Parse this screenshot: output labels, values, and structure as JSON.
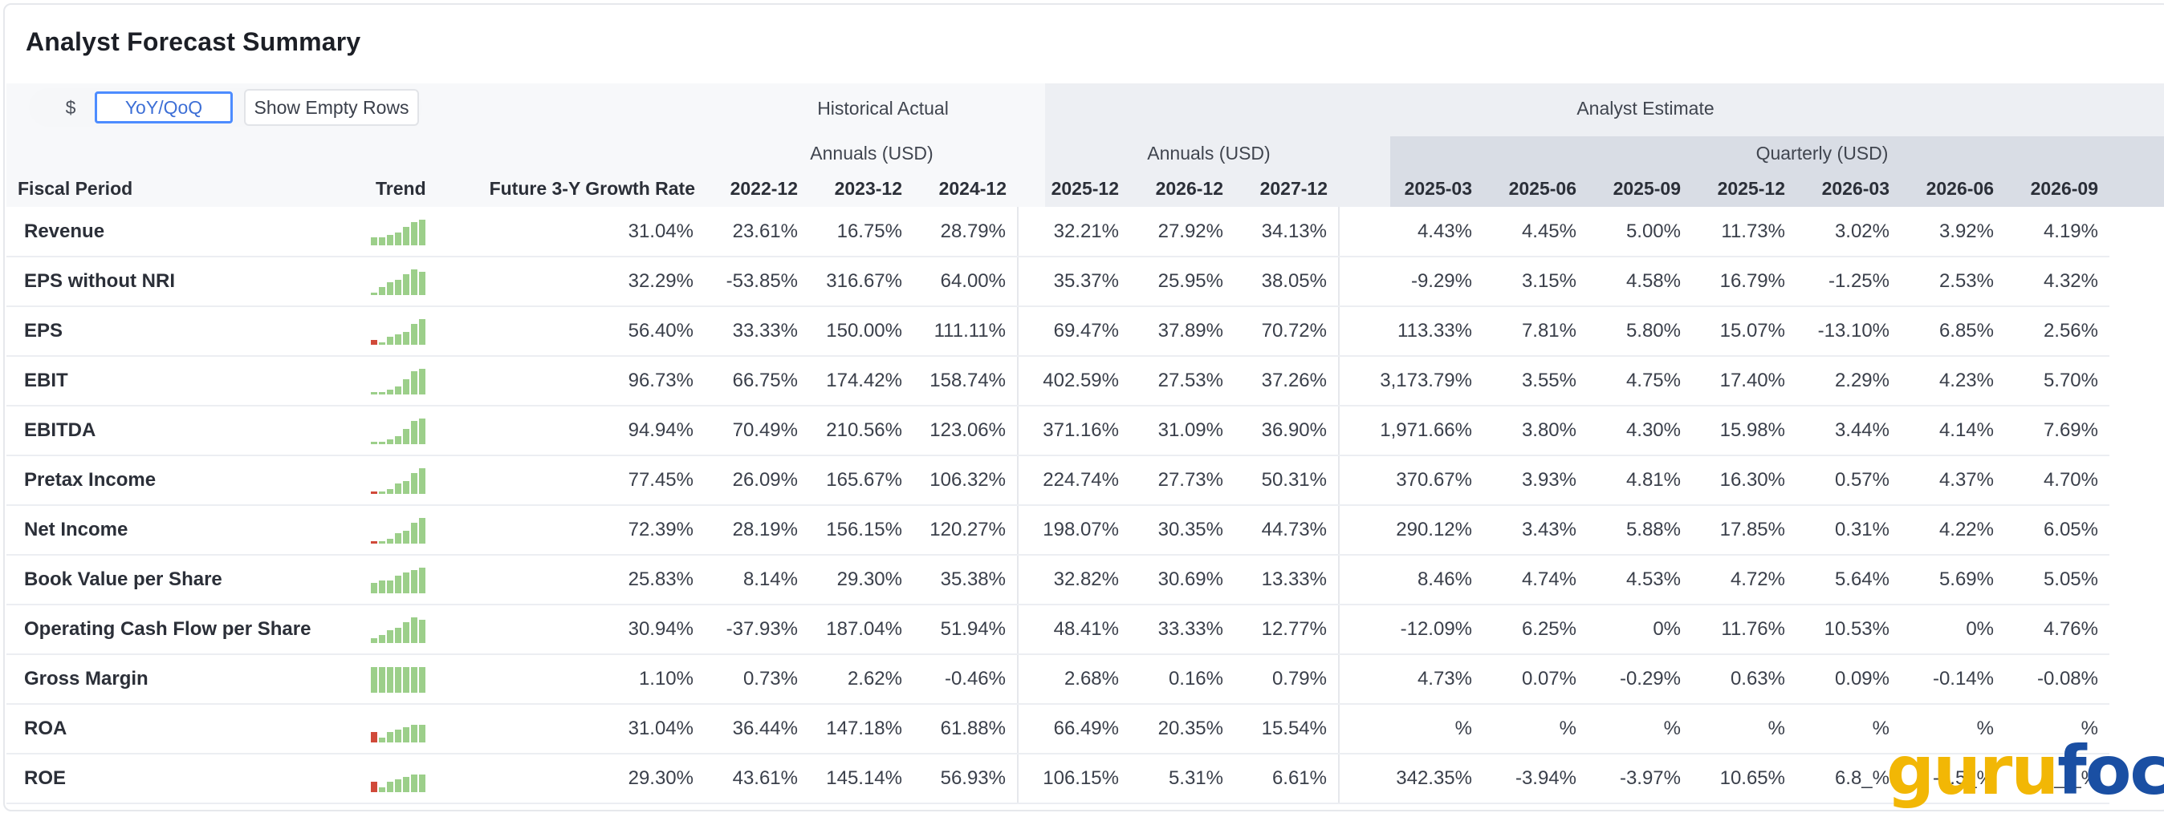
{
  "title": "Analyst Forecast Summary",
  "controls": {
    "dollar_label": "$",
    "yoy_label": "YoY/QoQ",
    "empty_rows_label": "Show Empty Rows"
  },
  "headers": {
    "historical": "Historical Actual",
    "estimate": "Analyst Estimate",
    "annuals_hist": "Annuals (USD)",
    "annuals_est": "Annuals (USD)",
    "quarterly": "Quarterly (USD)",
    "fiscal_period": "Fiscal Period",
    "trend": "Trend",
    "growth": "Future 3-Y Growth Rate",
    "periods": [
      "2022-12",
      "2023-12",
      "2024-12",
      "2025-12",
      "2026-12",
      "2027-12",
      "2025-03",
      "2025-06",
      "2025-09",
      "2025-12",
      "2026-03",
      "2026-06",
      "2026-09"
    ]
  },
  "colors": {
    "positive": "#5aa84a",
    "negative": "#d04a3a",
    "accent": "#4d8cff",
    "spark": "#9ccf8a"
  },
  "rows": [
    {
      "label": "Revenue",
      "trend": [
        3,
        3,
        4,
        5,
        7,
        9,
        10
      ],
      "growth": "31.04%",
      "vals": [
        "23.61%",
        "16.75%",
        "28.79%",
        "32.21%",
        "27.92%",
        "34.13%",
        "4.43%",
        "4.45%",
        "5.00%",
        "11.73%",
        "3.02%",
        "3.92%",
        "4.19%"
      ]
    },
    {
      "label": "EPS without NRI",
      "trend": [
        1,
        3,
        5,
        6,
        8,
        10,
        9
      ],
      "growth": "32.29%",
      "vals": [
        "-53.85%",
        "316.67%",
        "64.00%",
        "35.37%",
        "25.95%",
        "38.05%",
        "-9.29%",
        "3.15%",
        "4.58%",
        "16.79%",
        "-1.25%",
        "2.53%",
        "4.32%"
      ]
    },
    {
      "label": "EPS",
      "trend": [
        -2,
        1,
        3,
        4,
        5,
        8,
        10
      ],
      "growth": "56.40%",
      "vals": [
        "33.33%",
        "150.00%",
        "111.11%",
        "69.47%",
        "37.89%",
        "70.72%",
        "113.33%",
        "7.81%",
        "5.80%",
        "15.07%",
        "-13.10%",
        "6.85%",
        "2.56%"
      ]
    },
    {
      "label": "EBIT",
      "trend": [
        1,
        1,
        2,
        3,
        6,
        9,
        10
      ],
      "growth": "96.73%",
      "vals": [
        "66.75%",
        "174.42%",
        "158.74%",
        "402.59%",
        "27.53%",
        "37.26%",
        "3,173.79%",
        "3.55%",
        "4.75%",
        "17.40%",
        "2.29%",
        "4.23%",
        "5.70%"
      ]
    },
    {
      "label": "EBITDA",
      "trend": [
        1,
        1,
        2,
        3,
        6,
        9,
        10
      ],
      "growth": "94.94%",
      "vals": [
        "70.49%",
        "210.56%",
        "123.06%",
        "371.16%",
        "31.09%",
        "36.90%",
        "1,971.66%",
        "3.80%",
        "4.30%",
        "15.98%",
        "3.44%",
        "4.14%",
        "7.69%"
      ]
    },
    {
      "label": "Pretax Income",
      "trend": [
        -1,
        1,
        2,
        4,
        5,
        8,
        10
      ],
      "growth": "77.45%",
      "vals": [
        "26.09%",
        "165.67%",
        "106.32%",
        "224.74%",
        "27.73%",
        "50.31%",
        "370.67%",
        "3.93%",
        "4.81%",
        "16.30%",
        "0.57%",
        "4.37%",
        "4.70%"
      ]
    },
    {
      "label": "Net Income",
      "trend": [
        -1,
        1,
        2,
        4,
        5,
        8,
        10
      ],
      "growth": "72.39%",
      "vals": [
        "28.19%",
        "156.15%",
        "120.27%",
        "198.07%",
        "30.35%",
        "44.73%",
        "290.12%",
        "3.43%",
        "5.88%",
        "17.85%",
        "0.31%",
        "4.22%",
        "6.05%"
      ]
    },
    {
      "label": "Book Value per Share",
      "trend": [
        4,
        5,
        5,
        7,
        8,
        9,
        10
      ],
      "growth": "25.83%",
      "vals": [
        "8.14%",
        "29.30%",
        "35.38%",
        "32.82%",
        "30.69%",
        "13.33%",
        "8.46%",
        "4.74%",
        "4.53%",
        "4.72%",
        "5.64%",
        "5.69%",
        "5.05%"
      ]
    },
    {
      "label": "Operating Cash Flow per Share",
      "trend": [
        2,
        3,
        5,
        6,
        8,
        10,
        9
      ],
      "growth": "30.94%",
      "vals": [
        "-37.93%",
        "187.04%",
        "51.94%",
        "48.41%",
        "33.33%",
        "12.77%",
        "-12.09%",
        "6.25%",
        "0%",
        "11.76%",
        "10.53%",
        "0%",
        "4.76%"
      ]
    },
    {
      "label": "Gross Margin",
      "trend": [
        10,
        10,
        10,
        10,
        10,
        10,
        10
      ],
      "growth": "1.10%",
      "vals": [
        "0.73%",
        "2.62%",
        "-0.46%",
        "2.68%",
        "0.16%",
        "0.79%",
        "4.73%",
        "0.07%",
        "-0.29%",
        "0.63%",
        "0.09%",
        "-0.14%",
        "-0.08%"
      ]
    },
    {
      "label": "ROA",
      "trend": [
        -4,
        2,
        4,
        5,
        6,
        7,
        7
      ],
      "growth": "31.04%",
      "vals": [
        "36.44%",
        "147.18%",
        "61.88%",
        "66.49%",
        "20.35%",
        "15.54%",
        "%",
        "%",
        "%",
        "%",
        "%",
        "%",
        "%"
      ]
    },
    {
      "label": "ROE",
      "trend": [
        -4,
        2,
        4,
        5,
        6,
        7,
        7
      ],
      "growth": "29.30%",
      "vals": [
        "43.61%",
        "145.14%",
        "56.93%",
        "106.15%",
        "5.31%",
        "6.61%",
        "342.35%",
        "-3.94%",
        "-3.97%",
        "10.65%",
        "6.8_%",
        "-1.5_%",
        "_._%"
      ]
    }
  ],
  "logo": {
    "guru": "guru",
    "focus": "focus"
  }
}
